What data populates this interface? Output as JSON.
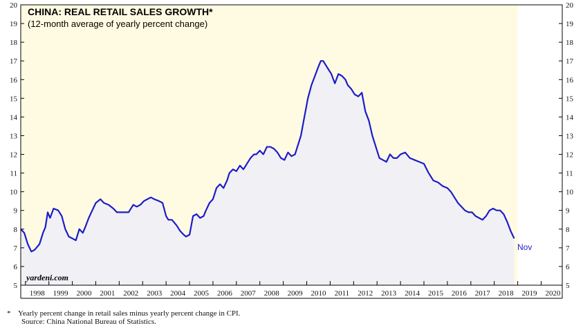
{
  "chart_data": {
    "type": "line",
    "title": "CHINA: REAL RETAIL SALES GROWTH*",
    "subtitle": "(12-month average of yearly percent change)",
    "ylim": [
      5,
      20
    ],
    "yticks": [
      5,
      6,
      7,
      8,
      9,
      10,
      11,
      12,
      13,
      14,
      15,
      16,
      17,
      18,
      19,
      20
    ],
    "xlim": [
      1997.8,
      2020.9
    ],
    "xticks": [
      "1998",
      "1999",
      "2000",
      "2001",
      "2002",
      "2003",
      "2004",
      "2005",
      "2006",
      "2007",
      "2008",
      "2009",
      "2010",
      "2011",
      "2012",
      "2013",
      "2014",
      "2015",
      "2016",
      "2017",
      "2018",
      "2019",
      "2020"
    ],
    "watermark": "yardeni.com",
    "end_label": "Nov",
    "colors": {
      "line": "#1c1cc8",
      "area": "#f0f0f5",
      "plot_bg": "#fffbe3",
      "last_bg": "#ffffff"
    },
    "series": [
      {
        "name": "Real retail sales growth",
        "x": [
          1997.8,
          1997.95,
          1998.1,
          1998.25,
          1998.4,
          1998.6,
          1998.75,
          1998.85,
          1998.95,
          1999.05,
          1999.2,
          1999.4,
          1999.55,
          1999.7,
          1999.85,
          2000.0,
          2000.15,
          2000.3,
          2000.45,
          2000.55,
          2000.7,
          2000.85,
          2001.0,
          2001.2,
          2001.35,
          2001.55,
          2001.75,
          2001.9,
          2002.0,
          2002.2,
          2002.4,
          2002.6,
          2002.75,
          2002.9,
          2003.05,
          2003.2,
          2003.35,
          2003.5,
          2003.7,
          2003.85,
          2004.0,
          2004.1,
          2004.25,
          2004.45,
          2004.6,
          2004.75,
          2004.85,
          2005.0,
          2005.15,
          2005.3,
          2005.45,
          2005.6,
          2005.7,
          2005.85,
          2006.0,
          2006.15,
          2006.3,
          2006.45,
          2006.6,
          2006.7,
          2006.85,
          2007.0,
          2007.15,
          2007.3,
          2007.45,
          2007.6,
          2007.75,
          2007.85,
          2008.0,
          2008.15,
          2008.3,
          2008.45,
          2008.6,
          2008.75,
          2008.9,
          2009.05,
          2009.2,
          2009.35,
          2009.5,
          2009.6,
          2009.75,
          2009.9,
          2010.05,
          2010.2,
          2010.35,
          2010.5,
          2010.6,
          2010.7,
          2010.8,
          2010.9,
          2011.05,
          2011.2,
          2011.35,
          2011.5,
          2011.65,
          2011.75,
          2011.9,
          2012.05,
          2012.2,
          2012.35,
          2012.5,
          2012.65,
          2012.8,
          2012.95,
          2013.1,
          2013.25,
          2013.4,
          2013.55,
          2013.7,
          2013.85,
          2014.0,
          2014.2,
          2014.4,
          2014.6,
          2014.8,
          2015.0,
          2015.2,
          2015.4,
          2015.6,
          2015.8,
          2016.0,
          2016.15,
          2016.3,
          2016.45,
          2016.6,
          2016.75,
          2016.9,
          2017.05,
          2017.2,
          2017.35,
          2017.5,
          2017.65,
          2017.8,
          2017.95,
          2018.1,
          2018.25,
          2018.4,
          2018.55,
          2018.7,
          2018.85
        ],
        "values": [
          8.0,
          7.8,
          7.2,
          6.8,
          6.9,
          7.2,
          7.8,
          8.1,
          8.9,
          8.6,
          9.1,
          9.0,
          8.7,
          8.0,
          7.6,
          7.5,
          7.4,
          8.0,
          7.8,
          8.1,
          8.6,
          9.0,
          9.4,
          9.6,
          9.4,
          9.3,
          9.1,
          8.9,
          8.9,
          8.9,
          8.9,
          9.3,
          9.2,
          9.3,
          9.5,
          9.6,
          9.7,
          9.6,
          9.5,
          9.4,
          8.7,
          8.5,
          8.5,
          8.2,
          7.9,
          7.7,
          7.6,
          7.7,
          8.7,
          8.8,
          8.6,
          8.7,
          9.0,
          9.4,
          9.6,
          10.2,
          10.4,
          10.2,
          10.6,
          11.0,
          11.2,
          11.1,
          11.4,
          11.2,
          11.5,
          11.8,
          12.0,
          12.0,
          12.2,
          12.0,
          12.4,
          12.4,
          12.3,
          12.1,
          11.8,
          11.7,
          12.1,
          11.9,
          12.0,
          12.4,
          13.0,
          14.0,
          15.0,
          15.7,
          16.2,
          16.7,
          17.0,
          17.0,
          16.8,
          16.6,
          16.3,
          15.8,
          16.3,
          16.2,
          16.0,
          15.7,
          15.5,
          15.2,
          15.1,
          15.3,
          14.3,
          13.8,
          13.0,
          12.4,
          11.8,
          11.7,
          11.6,
          12.0,
          11.8,
          11.8,
          12.0,
          12.1,
          11.8,
          11.7,
          11.6,
          11.5,
          11.0,
          10.6,
          10.5,
          10.3,
          10.2,
          10.0,
          9.7,
          9.4,
          9.2,
          9.0,
          8.9,
          8.9,
          8.7,
          8.6,
          8.5,
          8.7,
          9.0,
          9.1,
          9.0,
          9.0,
          8.8,
          8.4,
          7.9,
          7.5
        ]
      }
    ]
  },
  "footnotes": {
    "star": "*",
    "note": "Yearly percent change in retail sales minus yearly percent change in CPI.",
    "source": "Source: China National Bureau of Statistics."
  }
}
